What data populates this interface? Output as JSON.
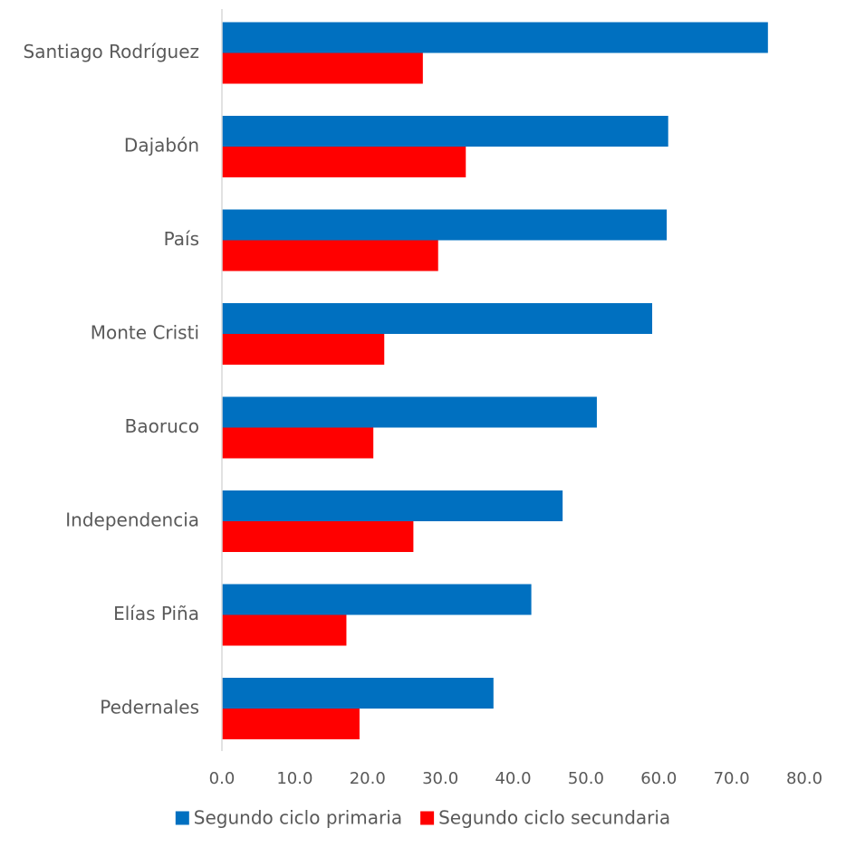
{
  "chart_data": {
    "type": "bar",
    "orientation": "horizontal",
    "categories": [
      "Santiago Rodríguez",
      "Dajabón",
      "País",
      "Monte Cristi",
      "Baoruco",
      "Independencia",
      "Elías Piña",
      "Pedernales"
    ],
    "series": [
      {
        "name": "Segundo ciclo primaria",
        "color": "#0070C0",
        "values": [
          75.0,
          61.3,
          61.1,
          59.1,
          51.5,
          46.8,
          42.5,
          37.3
        ]
      },
      {
        "name": "Segundo ciclo secundaria",
        "color": "#FF0000",
        "values": [
          27.6,
          33.5,
          29.7,
          22.3,
          20.8,
          26.3,
          17.1,
          18.9
        ]
      }
    ],
    "xlim": [
      0,
      80
    ],
    "xticks": [
      "0.0",
      "10.0",
      "20.0",
      "30.0",
      "40.0",
      "50.0",
      "60.0",
      "70.0",
      "80.0"
    ],
    "grid": false,
    "legend": "bottom"
  }
}
